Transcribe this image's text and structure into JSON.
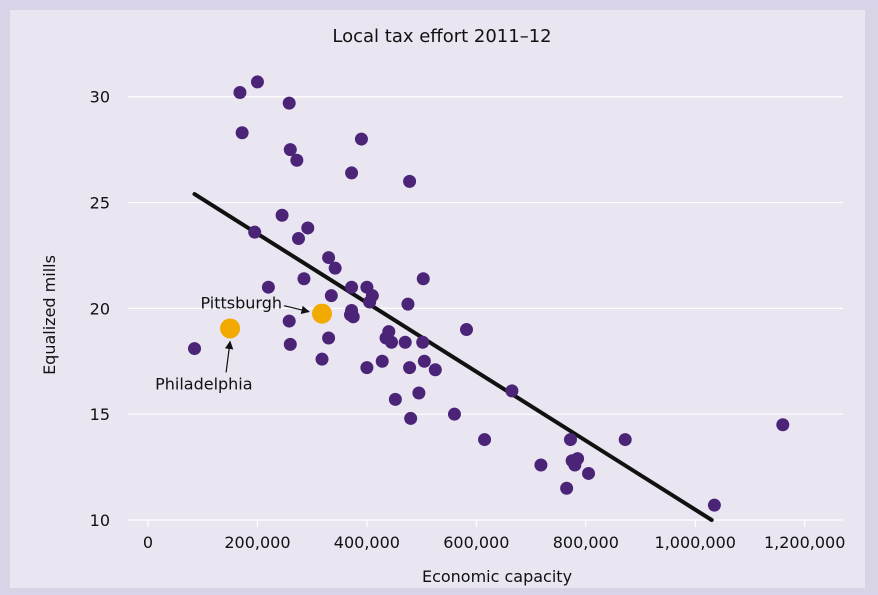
{
  "colors": {
    "background": "#d9d3e7",
    "panel": "#e9e5f1",
    "point": "#4b2478",
    "highlight": "#f2a900",
    "trendline": "#111111",
    "grid": "#ffffff"
  },
  "chart_data": {
    "type": "scatter",
    "title": "Local tax effort 2011–12",
    "xlabel": "Economic capacity",
    "ylabel": "Equalized mills",
    "xlim": [
      0,
      1270000
    ],
    "ylim": [
      10,
      31.5
    ],
    "x_ticks": [
      "0",
      "200,000",
      "400,000",
      "600,000",
      "800,000",
      "1,000,000",
      "1,200,000"
    ],
    "x_tick_values": [
      0,
      200000,
      400000,
      600000,
      800000,
      1000000,
      1200000
    ],
    "y_ticks": [
      "10",
      "15",
      "20",
      "25",
      "30"
    ],
    "y_tick_values": [
      10,
      15,
      20,
      25,
      30
    ],
    "grid": "horizontal",
    "points": [
      [
        85000,
        18.1
      ],
      [
        168000,
        30.2
      ],
      [
        172000,
        28.3
      ],
      [
        200000,
        30.7
      ],
      [
        258000,
        29.7
      ],
      [
        260000,
        27.5
      ],
      [
        272000,
        27.0
      ],
      [
        390000,
        28.0
      ],
      [
        372000,
        26.4
      ],
      [
        478000,
        26.0
      ],
      [
        195000,
        23.6
      ],
      [
        245000,
        24.4
      ],
      [
        275000,
        23.3
      ],
      [
        292000,
        23.8
      ],
      [
        330000,
        22.4
      ],
      [
        342000,
        21.9
      ],
      [
        220000,
        21.0
      ],
      [
        285000,
        21.4
      ],
      [
        258000,
        19.4
      ],
      [
        260000,
        18.3
      ],
      [
        318000,
        17.6
      ],
      [
        330000,
        18.6
      ],
      [
        335000,
        20.6
      ],
      [
        372000,
        21.0
      ],
      [
        372000,
        19.9
      ],
      [
        375000,
        19.6
      ],
      [
        370000,
        19.7
      ],
      [
        400000,
        21.0
      ],
      [
        405000,
        20.3
      ],
      [
        410000,
        20.6
      ],
      [
        400000,
        17.2
      ],
      [
        428000,
        17.5
      ],
      [
        435000,
        18.6
      ],
      [
        440000,
        18.9
      ],
      [
        445000,
        18.4
      ],
      [
        470000,
        18.4
      ],
      [
        475000,
        20.2
      ],
      [
        478000,
        17.2
      ],
      [
        502000,
        18.4
      ],
      [
        503000,
        21.4
      ],
      [
        505000,
        17.5
      ],
      [
        525000,
        17.1
      ],
      [
        495000,
        16.0
      ],
      [
        452000,
        15.7
      ],
      [
        480000,
        14.8
      ],
      [
        560000,
        15.0
      ],
      [
        582000,
        19.0
      ],
      [
        615000,
        13.8
      ],
      [
        665000,
        16.1
      ],
      [
        718000,
        12.6
      ],
      [
        765000,
        11.5
      ],
      [
        772000,
        13.8
      ],
      [
        775000,
        12.8
      ],
      [
        780000,
        12.6
      ],
      [
        785000,
        12.9
      ],
      [
        805000,
        12.2
      ],
      [
        872000,
        13.8
      ],
      [
        1035000,
        10.7
      ],
      [
        1160000,
        14.5
      ]
    ],
    "highlighted_points": [
      {
        "label": "Pittsburgh",
        "x": 318000,
        "y": 19.75
      },
      {
        "label": "Philadelphia",
        "x": 150000,
        "y": 19.05
      }
    ],
    "trendline": {
      "x": [
        85000,
        1030000
      ],
      "y": [
        25.4,
        10.0
      ]
    }
  }
}
